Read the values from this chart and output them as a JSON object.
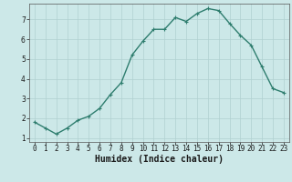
{
  "x": [
    0,
    1,
    2,
    3,
    4,
    5,
    6,
    7,
    8,
    9,
    10,
    11,
    12,
    13,
    14,
    15,
    16,
    17,
    18,
    19,
    20,
    21,
    22,
    23
  ],
  "y": [
    1.8,
    1.5,
    1.2,
    1.5,
    1.9,
    2.1,
    2.5,
    3.2,
    3.8,
    5.2,
    5.9,
    6.5,
    6.5,
    7.1,
    6.9,
    7.3,
    7.55,
    7.45,
    6.8,
    6.2,
    5.7,
    4.6,
    3.5,
    3.3
  ],
  "xlabel": "Humidex (Indice chaleur)",
  "line_color": "#2e7d6e",
  "marker_color": "#2e7d6e",
  "bg_color": "#cce8e8",
  "grid_color": "#b0d0d0",
  "ylim": [
    0.8,
    7.8
  ],
  "xlim": [
    -0.5,
    23.5
  ],
  "yticks": [
    1,
    2,
    3,
    4,
    5,
    6,
    7
  ],
  "xticks": [
    0,
    1,
    2,
    3,
    4,
    5,
    6,
    7,
    8,
    9,
    10,
    11,
    12,
    13,
    14,
    15,
    16,
    17,
    18,
    19,
    20,
    21,
    22,
    23
  ],
  "tick_fontsize": 5.5,
  "xlabel_fontsize": 7,
  "linewidth": 1.0,
  "markersize": 3.0
}
